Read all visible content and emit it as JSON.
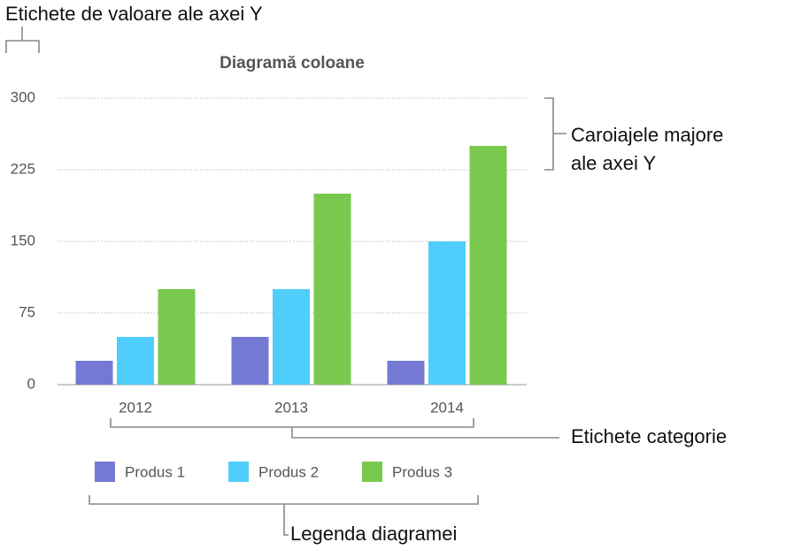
{
  "chart_data": {
    "type": "bar",
    "title": "Diagramă coloane",
    "categories": [
      "2012",
      "2013",
      "2014"
    ],
    "series": [
      {
        "name": "Produs 1",
        "color": "#7479d3",
        "values": [
          25,
          50,
          25
        ]
      },
      {
        "name": "Produs 2",
        "color": "#4fcdfb",
        "values": [
          50,
          100,
          150
        ]
      },
      {
        "name": "Produs 3",
        "color": "#7ac94f",
        "values": [
          100,
          200,
          250
        ]
      }
    ],
    "ylim": [
      0,
      300
    ],
    "yticks": [
      0,
      75,
      150,
      225,
      300
    ],
    "grid": true,
    "legend": "bottom"
  },
  "annotations": [
    "Etichete de valoare ale axei Y",
    "Caroiajele majore",
    "ale axei Y",
    "Etichete categorie",
    "Legenda diagramei"
  ]
}
